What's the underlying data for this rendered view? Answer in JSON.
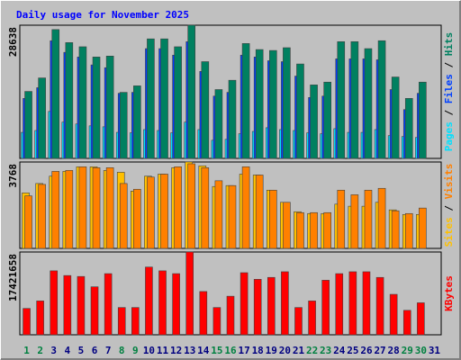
{
  "chart_data": {
    "type": "bar",
    "title": "Daily usage for November 2025",
    "categories": [
      "1",
      "2",
      "3",
      "4",
      "5",
      "6",
      "7",
      "8",
      "9",
      "10",
      "11",
      "12",
      "13",
      "14",
      "15",
      "16",
      "17",
      "18",
      "19",
      "20",
      "21",
      "22",
      "23",
      "24",
      "25",
      "26",
      "27",
      "28",
      "29",
      "30",
      "31"
    ],
    "category_colors": [
      "#008040",
      "#008040",
      "#000080",
      "#000080",
      "#000080",
      "#000080",
      "#000080",
      "#008040",
      "#008040",
      "#000080",
      "#000080",
      "#000080",
      "#000080",
      "#000080",
      "#008040",
      "#008040",
      "#000080",
      "#000080",
      "#000080",
      "#000080",
      "#000080",
      "#008040",
      "#008040",
      "#000080",
      "#000080",
      "#000080",
      "#000080",
      "#000080",
      "#008040",
      "#008040",
      "#000080"
    ],
    "legend_separator": " / ",
    "panels": [
      {
        "ylim": [
          0,
          28638
        ],
        "yticks": [
          28638
        ],
        "series": [
          {
            "name": "Pages",
            "color": "#00e0ff",
            "values": [
              5600,
              6000,
              10100,
              7800,
              7400,
              7000,
              6800,
              5600,
              5500,
              6200,
              6000,
              5500,
              7800,
              6200,
              3900,
              4100,
              5300,
              5800,
              6600,
              6200,
              6000,
              5500,
              5300,
              6400,
              5600,
              5600,
              6200,
              4900,
              4700,
              4500,
              null
            ]
          },
          {
            "name": "Files",
            "color": "#0040ff",
            "values": [
              12900,
              15200,
              25300,
              22800,
              21800,
              20100,
              19500,
              14000,
              14200,
              23600,
              23600,
              22200,
              25100,
              18700,
              13400,
              14200,
              22200,
              21800,
              21000,
              20800,
              17700,
              13100,
              13400,
              21400,
              21400,
              21400,
              21200,
              14800,
              10500,
              14000,
              null
            ]
          },
          {
            "name": "Hits",
            "color": "#008060",
            "values": [
              14400,
              17300,
              27700,
              24900,
              24000,
              21800,
              22000,
              14200,
              15600,
              25700,
              25700,
              24000,
              28638,
              20800,
              14800,
              16800,
              24700,
              23400,
              23200,
              23800,
              20300,
              15800,
              16400,
              25100,
              25100,
              23600,
              25300,
              17500,
              12900,
              16400,
              null
            ]
          }
        ]
      },
      {
        "ylim": [
          0,
          3768
        ],
        "yticks": [
          3768
        ],
        "series": [
          {
            "name": "Sites",
            "color": "#ffc000",
            "values": [
              2420,
              2830,
              3150,
              3360,
              3560,
              3560,
              3400,
              3320,
              2500,
              3150,
              3240,
              3520,
              3768,
              3600,
              2700,
              2740,
              3240,
              3200,
              2540,
              2010,
              1600,
              1520,
              1520,
              1930,
              1840,
              1840,
              2010,
              1680,
              1480,
              1480,
              null
            ]
          },
          {
            "name": "Visits",
            "color": "#ff8000",
            "values": [
              2290,
              2790,
              3360,
              3400,
              3560,
              3520,
              3520,
              2830,
              2580,
              3110,
              3240,
              3560,
              3690,
              3520,
              2950,
              2740,
              3560,
              3200,
              2540,
              2010,
              1560,
              1560,
              1560,
              2540,
              2340,
              2540,
              2620,
              1640,
              1520,
              1760,
              null
            ]
          }
        ]
      },
      {
        "ylim": [
          0,
          17421658
        ],
        "yticks": [
          17421658
        ],
        "series": [
          {
            "name": "KBytes",
            "color": "#ff0000",
            "values": [
              5543000,
              7127000,
              13462000,
              12472000,
              12274000,
              10097000,
              12868000,
              5741000,
              5741000,
              14254000,
              13462000,
              12868000,
              17421658,
              9107000,
              5741000,
              8117000,
              13066000,
              11680000,
              12076000,
              13264000,
              5741000,
              7127000,
              11482000,
              12868000,
              13264000,
              13264000,
              12076000,
              8513000,
              5147000,
              6731000,
              null
            ]
          }
        ]
      }
    ]
  }
}
